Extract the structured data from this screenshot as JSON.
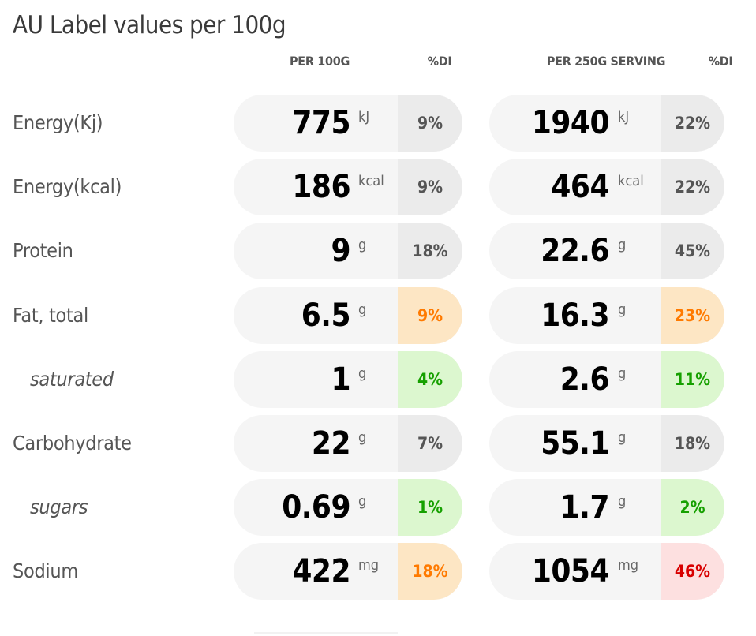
{
  "title": "AU Label values per 100g",
  "columns": {
    "per100": "PER 100G",
    "di1": "%DI",
    "perServing": "PER 250G SERVING",
    "di2": "%DI"
  },
  "rows": [
    {
      "label": "Energy(Kj)",
      "sub": false,
      "v100": "775",
      "u100": "kJ",
      "di100": "9%",
      "di100_level": "neutral",
      "vS": "1940",
      "uS": "kJ",
      "diS": "22%",
      "diS_level": "neutral"
    },
    {
      "label": "Energy(kcal)",
      "sub": false,
      "v100": "186",
      "u100": "kcal",
      "di100": "9%",
      "di100_level": "neutral",
      "vS": "464",
      "uS": "kcal",
      "diS": "22%",
      "diS_level": "neutral"
    },
    {
      "label": "Protein",
      "sub": false,
      "v100": "9",
      "u100": "g",
      "di100": "18%",
      "di100_level": "neutral",
      "vS": "22.6",
      "uS": "g",
      "diS": "45%",
      "diS_level": "neutral"
    },
    {
      "label": "Fat, total",
      "sub": false,
      "v100": "6.5",
      "u100": "g",
      "di100": "9%",
      "di100_level": "orange",
      "vS": "16.3",
      "uS": "g",
      "diS": "23%",
      "diS_level": "orange"
    },
    {
      "label": "saturated",
      "sub": true,
      "v100": "1",
      "u100": "g",
      "di100": "4%",
      "di100_level": "green",
      "vS": "2.6",
      "uS": "g",
      "diS": "11%",
      "diS_level": "green"
    },
    {
      "label": "Carbohydrate",
      "sub": false,
      "v100": "22",
      "u100": "g",
      "di100": "7%",
      "di100_level": "neutral",
      "vS": "55.1",
      "uS": "g",
      "diS": "18%",
      "diS_level": "neutral"
    },
    {
      "label": "sugars",
      "sub": true,
      "v100": "0.69",
      "u100": "g",
      "di100": "1%",
      "di100_level": "green",
      "vS": "1.7",
      "uS": "g",
      "diS": "2%",
      "diS_level": "green"
    },
    {
      "label": "Sodium",
      "sub": false,
      "v100": "422",
      "u100": "mg",
      "di100": "18%",
      "di100_level": "orange",
      "vS": "1054",
      "uS": "mg",
      "diS": "46%",
      "diS_level": "red"
    }
  ],
  "colors": {
    "neutral_bg": "#ebebeb",
    "orange_bg": "#fde6c4",
    "orange_text": "#ff7a00",
    "green_bg": "#dcf7cf",
    "green_text": "#16a000",
    "red_bg": "#fde0e0",
    "red_text": "#d80000"
  }
}
